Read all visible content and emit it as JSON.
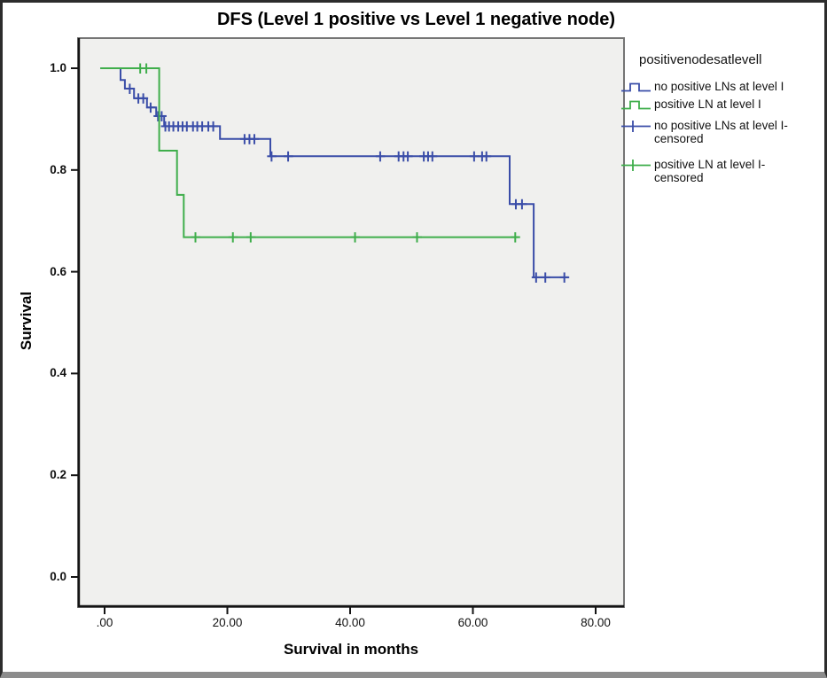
{
  "figure": {
    "title": "DFS (Level 1 positive vs Level 1 negative node)"
  },
  "colors": {
    "blue": "#3A4DA8",
    "green": "#3FAE4B",
    "plot_bg": "#F0F0EE",
    "plot_frame": "#757575",
    "axis_line": "#141414",
    "text": "#000000"
  },
  "legend": {
    "title": "positivenodesatlevell",
    "items": [
      {
        "label": "no positive LNs at level I",
        "swatch": "step",
        "color": "blue"
      },
      {
        "label": "positive LN at level I",
        "swatch": "step",
        "color": "green"
      },
      {
        "lines": [
          "no positive LNs at level I-",
          "censored"
        ],
        "swatch": "censor",
        "color": "blue"
      },
      {
        "lines": [
          "positive LN at level I-",
          "censored"
        ],
        "swatch": "censor",
        "color": "green"
      }
    ]
  },
  "chart_data": {
    "type": "line",
    "subtype": "kaplan_meier_step",
    "title": "DFS (Level 1 positive vs Level 1 negative node)",
    "xlabel": "Survival in months",
    "ylabel": "Survival",
    "grid": false,
    "legend_position": "right",
    "xlim": [
      -4.3,
      84.8
    ],
    "ylim": [
      -0.059,
      1.059
    ],
    "x_ticks": [
      {
        "label": ".00",
        "value": 0
      },
      {
        "label": "20.00",
        "value": 20
      },
      {
        "label": "40.00",
        "value": 40
      },
      {
        "label": "60.00",
        "value": 60
      },
      {
        "label": "80.00",
        "value": 80
      }
    ],
    "y_ticks": [
      {
        "label": "0.0",
        "value": 0.0
      },
      {
        "label": "0.2",
        "value": 0.2
      },
      {
        "label": "0.4",
        "value": 0.4
      },
      {
        "label": "0.6",
        "value": 0.6
      },
      {
        "label": "0.8",
        "value": 0.8
      },
      {
        "label": "1.0",
        "value": 1.0
      }
    ],
    "series": [
      {
        "name": "no positive LNs at level I",
        "color": "#3A4DA8",
        "end": 75.5,
        "steps": [
          [
            -0.7,
            1.0
          ],
          [
            2.6,
            0.977
          ],
          [
            3.3,
            0.96
          ],
          [
            4.8,
            0.941
          ],
          [
            6.9,
            0.923
          ],
          [
            8.4,
            0.906
          ],
          [
            9.7,
            0.886
          ],
          [
            18.8,
            0.861
          ],
          [
            27.0,
            0.827
          ],
          [
            66.0,
            0.733
          ],
          [
            69.9,
            0.589
          ]
        ],
        "censors": [
          [
            4.1,
            0.96
          ],
          [
            5.5,
            0.941
          ],
          [
            6.3,
            0.941
          ],
          [
            7.5,
            0.923
          ],
          [
            8.7,
            0.906
          ],
          [
            9.3,
            0.906
          ],
          [
            9.9,
            0.886
          ],
          [
            10.5,
            0.886
          ],
          [
            11.2,
            0.886
          ],
          [
            12.0,
            0.886
          ],
          [
            12.7,
            0.886
          ],
          [
            13.4,
            0.886
          ],
          [
            14.4,
            0.886
          ],
          [
            15.1,
            0.886
          ],
          [
            15.9,
            0.886
          ],
          [
            16.9,
            0.886
          ],
          [
            17.7,
            0.886
          ],
          [
            22.8,
            0.861
          ],
          [
            23.6,
            0.861
          ],
          [
            24.4,
            0.861
          ],
          [
            27.2,
            0.827
          ],
          [
            29.9,
            0.827
          ],
          [
            44.9,
            0.827
          ],
          [
            47.9,
            0.827
          ],
          [
            48.7,
            0.827
          ],
          [
            49.4,
            0.827
          ],
          [
            52.0,
            0.827
          ],
          [
            52.7,
            0.827
          ],
          [
            53.4,
            0.827
          ],
          [
            60.2,
            0.827
          ],
          [
            61.5,
            0.827
          ],
          [
            62.2,
            0.827
          ],
          [
            67.0,
            0.733
          ],
          [
            68.0,
            0.733
          ],
          [
            70.3,
            0.589
          ],
          [
            71.8,
            0.589
          ],
          [
            74.9,
            0.589
          ]
        ]
      },
      {
        "name": "positive LN at level I",
        "color": "#3FAE4B",
        "end": 67.4,
        "steps": [
          [
            -0.7,
            1.0
          ],
          [
            8.9,
            0.838
          ],
          [
            11.8,
            0.751
          ],
          [
            12.9,
            0.668
          ]
        ],
        "censors": [
          [
            5.8,
            1.0
          ],
          [
            6.8,
            1.0
          ],
          [
            14.8,
            0.668
          ],
          [
            20.9,
            0.668
          ],
          [
            23.8,
            0.668
          ],
          [
            40.8,
            0.668
          ],
          [
            50.9,
            0.668
          ],
          [
            66.9,
            0.668
          ]
        ]
      }
    ]
  }
}
